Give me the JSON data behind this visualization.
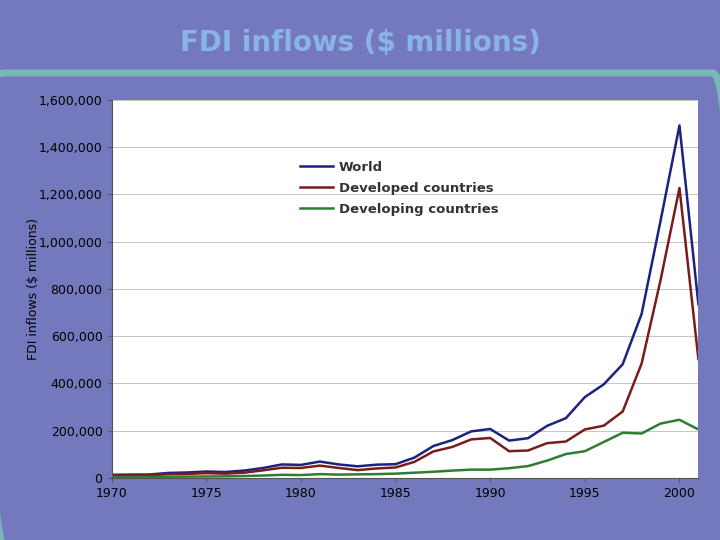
{
  "title": "FDI inflows ($ millions)",
  "title_bg_color": "#6670b8",
  "title_text_color": "#8ab4e8",
  "ylabel": "FDI inflows ($ millions)",
  "years": [
    1970,
    1971,
    1972,
    1973,
    1974,
    1975,
    1976,
    1977,
    1978,
    1979,
    1980,
    1981,
    1982,
    1983,
    1984,
    1985,
    1986,
    1987,
    1988,
    1989,
    1990,
    1991,
    1992,
    1993,
    1994,
    1995,
    1996,
    1997,
    1998,
    1999,
    2000,
    2001
  ],
  "world": [
    13200,
    14000,
    14500,
    21000,
    23000,
    27000,
    25000,
    31000,
    42000,
    57000,
    55000,
    69000,
    57000,
    49000,
    56000,
    58000,
    86000,
    135000,
    160000,
    197000,
    207000,
    158000,
    168000,
    220000,
    253000,
    342000,
    396000,
    481000,
    694000,
    1088000,
    1492000,
    735000
  ],
  "developed": [
    10000,
    10500,
    11000,
    16000,
    17000,
    20000,
    18000,
    22000,
    32000,
    43000,
    42000,
    52000,
    42000,
    33000,
    40000,
    44000,
    68000,
    112000,
    131000,
    163000,
    169000,
    113000,
    116000,
    147000,
    154000,
    205000,
    221000,
    281000,
    484000,
    837000,
    1227000,
    503000
  ],
  "developing": [
    3000,
    3500,
    3800,
    5000,
    5500,
    6000,
    6500,
    8000,
    10000,
    13000,
    12000,
    16000,
    14000,
    15000,
    16000,
    18000,
    22000,
    26000,
    31000,
    35000,
    35000,
    41000,
    50000,
    73000,
    101000,
    113000,
    152000,
    191000,
    188000,
    230000,
    246000,
    205000
  ],
  "world_color": "#1a237e",
  "developed_color": "#7b1c1c",
  "developing_color": "#2e7d32",
  "grid_color": "#aaaaaa",
  "plot_bg_color": "#ffffff",
  "outer_bg_color": "#7478bc",
  "border_color": "#7ab8b8",
  "ylim": [
    0,
    1600000
  ],
  "yticks": [
    0,
    200000,
    400000,
    600000,
    800000,
    1000000,
    1200000,
    1400000,
    1600000
  ],
  "xticks": [
    1970,
    1975,
    1980,
    1985,
    1990,
    1995,
    2000
  ],
  "legend_labels": [
    "World",
    "Developed countries",
    "Developing countries"
  ],
  "title_fontsize": 20,
  "tick_fontsize": 9,
  "ylabel_fontsize": 9
}
